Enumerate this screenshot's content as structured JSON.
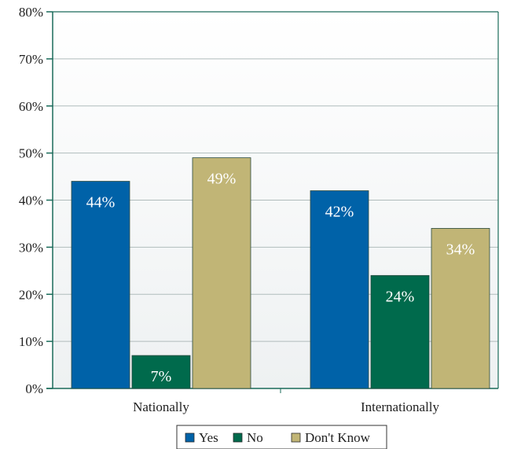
{
  "chart_data": {
    "type": "bar",
    "categories": [
      "Nationally",
      "Internationally"
    ],
    "series": [
      {
        "name": "Yes",
        "color": "#0062a8",
        "values": [
          44,
          42
        ],
        "labels": [
          "44%",
          "42%"
        ]
      },
      {
        "name": "No",
        "color": "#006a4c",
        "values": [
          7,
          24
        ],
        "labels": [
          "7%",
          "24%"
        ]
      },
      {
        "name": "Don't Know",
        "color": "#c1b576",
        "values": [
          49,
          34
        ],
        "labels": [
          "49%",
          "34%"
        ]
      }
    ],
    "ylim": [
      0,
      80
    ],
    "yticks": [
      0,
      10,
      20,
      30,
      40,
      50,
      60,
      70,
      80
    ],
    "ytick_labels": [
      "0%",
      "10%",
      "20%",
      "30%",
      "40%",
      "50%",
      "60%",
      "70%",
      "80%"
    ],
    "grid": true,
    "legend_position": "bottom-center",
    "colors": {
      "axis": "#1a6b5a",
      "grid": "#b0bcbc",
      "plot_bg": "#eef1f2"
    }
  }
}
